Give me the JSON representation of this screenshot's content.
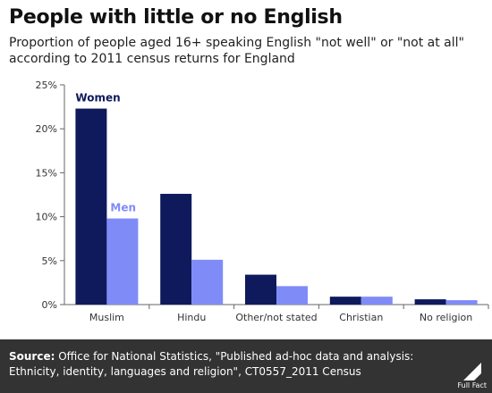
{
  "title": "People with little or no English",
  "subtitle": "Proportion of people aged 16+ speaking English \"not well\" or \"not at all\" according to 2011 census returns for England",
  "chart_data": {
    "type": "bar",
    "categories": [
      "Muslim",
      "Hindu",
      "Other/not stated",
      "Christian",
      "No religion"
    ],
    "series": [
      {
        "name": "Women",
        "values": [
          22.3,
          12.6,
          3.4,
          0.9,
          0.6
        ],
        "color": "#0e1a5c"
      },
      {
        "name": "Men",
        "values": [
          9.8,
          5.1,
          2.1,
          0.9,
          0.5
        ],
        "color": "#7f8cf7"
      }
    ],
    "ylim": [
      0,
      25
    ],
    "yticks": [
      "0%",
      "5%",
      "10%",
      "15%",
      "20%",
      "25%"
    ],
    "ytick_values": [
      0,
      5,
      10,
      15,
      20,
      25
    ],
    "grid": false,
    "legend": "inline labels above first category bars"
  },
  "footer": {
    "source_label": "Source:",
    "source_text": "Office for National Statistics, \"Published ad-hoc data and analysis: Ethnicity, identity, languages and religion\", CT0557_2011 Census",
    "logo_text": "Full Fact"
  },
  "colors": {
    "footer_bg": "#333333",
    "women": "#0e1a5c",
    "men": "#7f8cf7"
  }
}
